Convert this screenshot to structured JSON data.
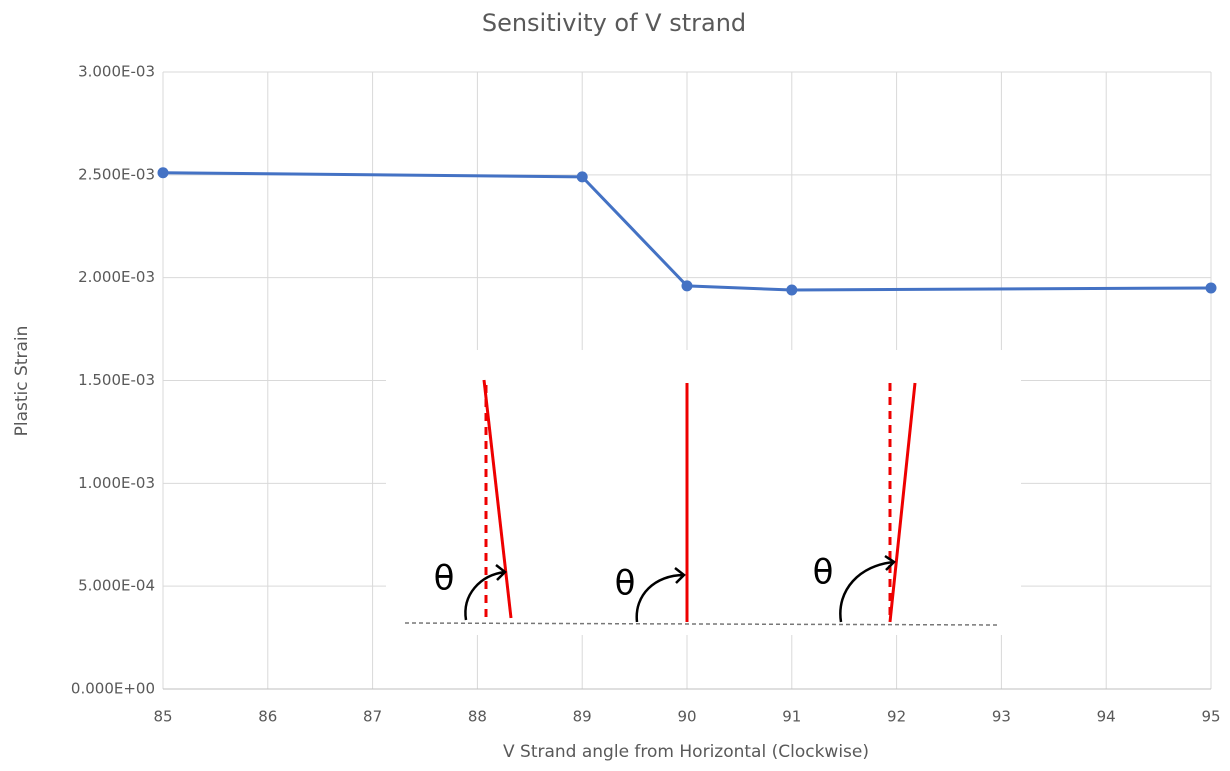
{
  "chart_data": {
    "type": "line",
    "title": "Sensitivity of V strand",
    "x_label": "V Strand angle from Horizontal (Clockwise)",
    "y_label": "Plastic Strain",
    "x": [
      85,
      89,
      90,
      91,
      95
    ],
    "values": [
      0.00251,
      0.00249,
      0.00196,
      0.00194,
      0.00195
    ],
    "color": "#4472c4",
    "xlim": [
      85,
      95
    ],
    "xticks": [
      85,
      86,
      87,
      88,
      89,
      90,
      91,
      92,
      93,
      94,
      95
    ],
    "ylim": [
      0,
      0.003
    ],
    "yticks": [
      {
        "value": 0,
        "label": "0.000E+00"
      },
      {
        "value": 0.0005,
        "label": "5.000E-04"
      },
      {
        "value": 0.001,
        "label": "1.000E-03"
      },
      {
        "value": 0.0015,
        "label": "1.500E-03"
      },
      {
        "value": 0.002,
        "label": "2.000E-03"
      },
      {
        "value": 0.0025,
        "label": "2.500E-03"
      },
      {
        "value": 0.003,
        "label": "3.000E-03"
      }
    ],
    "grid": true
  },
  "inset": {
    "symbols": [
      "θ",
      "θ",
      "θ"
    ]
  }
}
